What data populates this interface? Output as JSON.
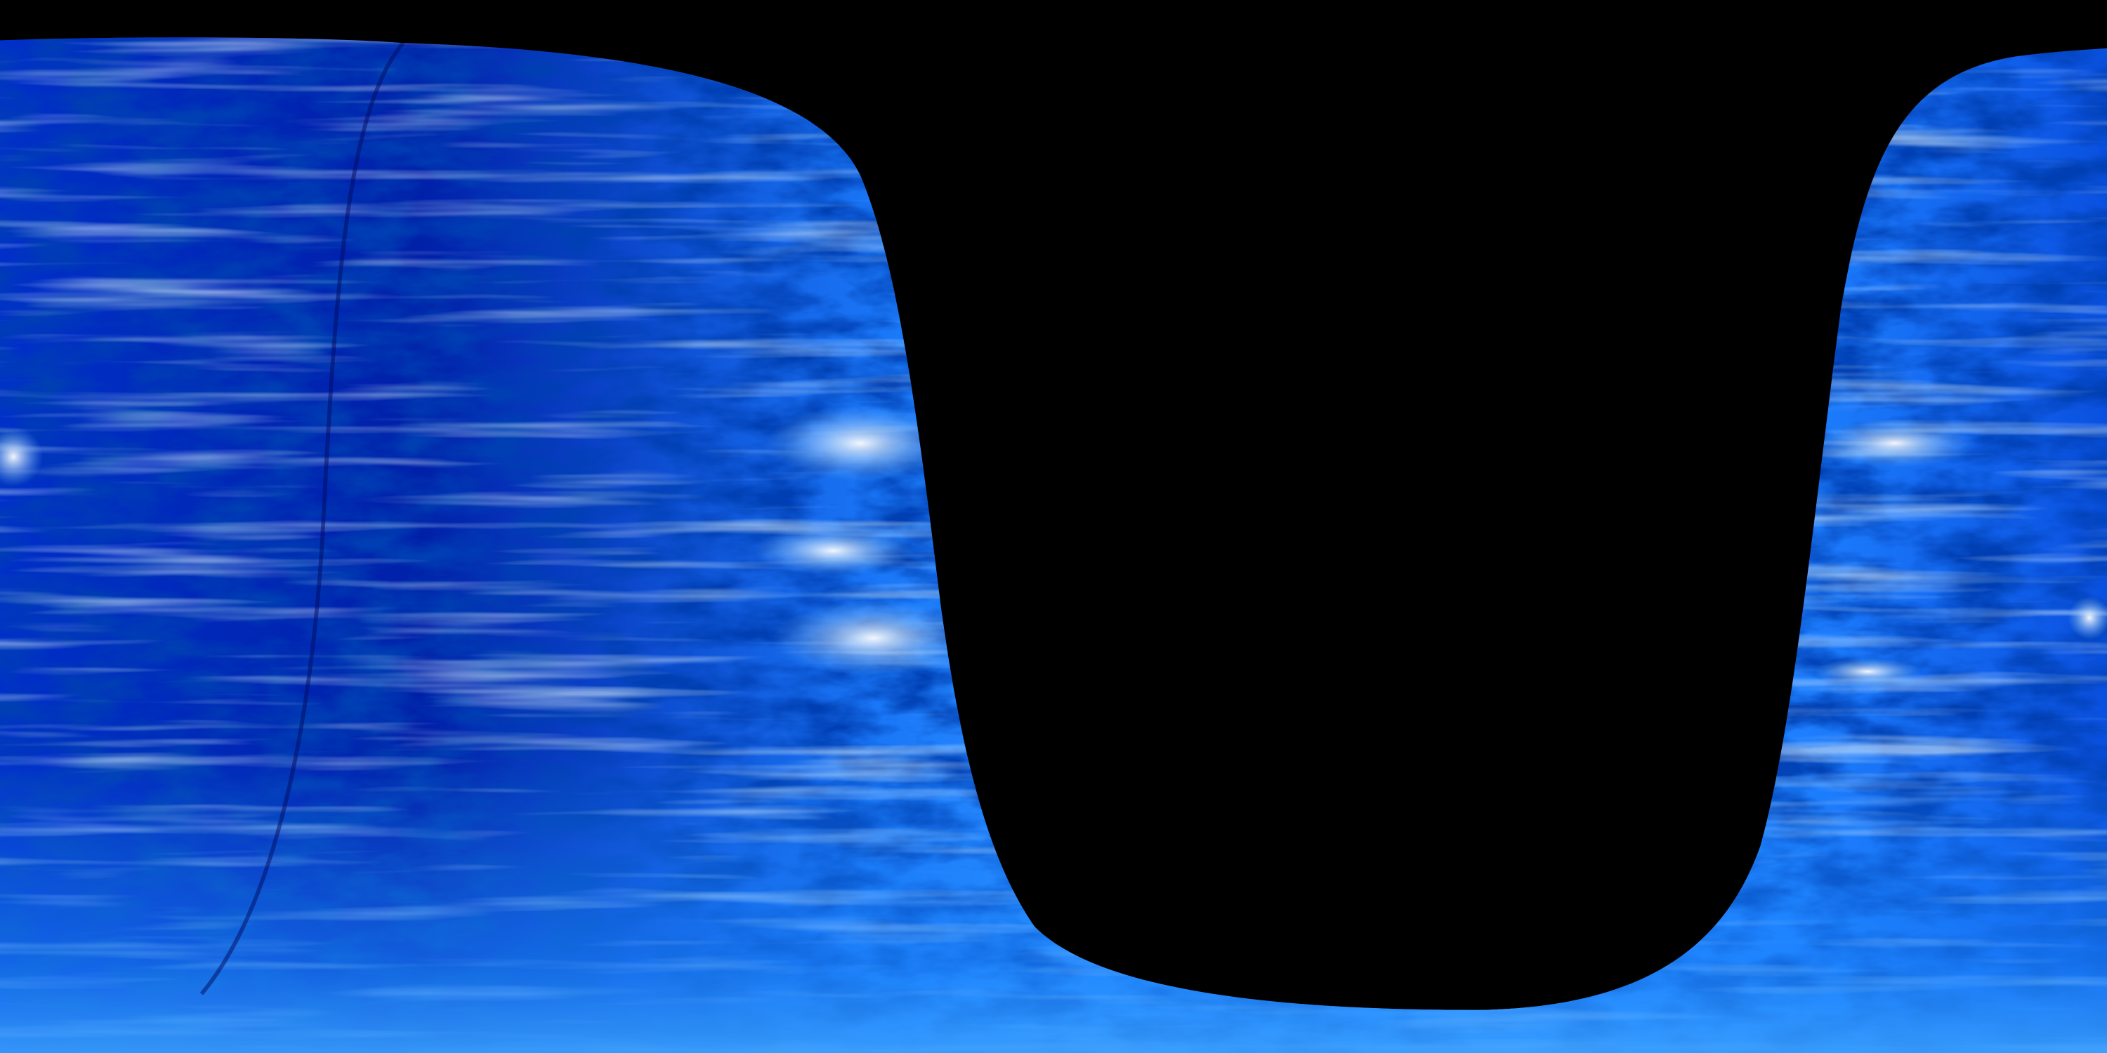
{
  "colors": {
    "background": "#000000",
    "deep_blue": "#00108f",
    "mid_blue": "#0050e0",
    "bright_blue": "#1e88ff",
    "highlight": "#ffffff"
  }
}
